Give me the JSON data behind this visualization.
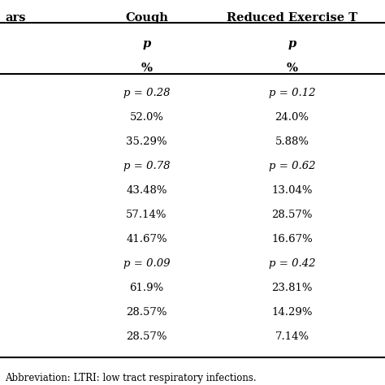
{
  "col1_header": "Cough",
  "col2_header": "Reduced Exercise T",
  "subheader_p": "p",
  "subheader_pct": "%",
  "rows": [
    {
      "col1": "p = 0.28",
      "col2": "p = 0.12",
      "italic": true
    },
    {
      "col1": "52.0%",
      "col2": "24.0%",
      "italic": false
    },
    {
      "col1": "35.29%",
      "col2": "5.88%",
      "italic": false
    },
    {
      "col1": "p = 0.78",
      "col2": "p = 0.62",
      "italic": true
    },
    {
      "col1": "43.48%",
      "col2": "13.04%",
      "italic": false
    },
    {
      "col1": "57.14%",
      "col2": "28.57%",
      "italic": false
    },
    {
      "col1": "41.67%",
      "col2": "16.67%",
      "italic": false
    },
    {
      "col1": "p = 0.09",
      "col2": "p = 0.42",
      "italic": true
    },
    {
      "col1": "61.9%",
      "col2": "23.81%",
      "italic": false
    },
    {
      "col1": "28.57%",
      "col2": "14.29%",
      "italic": false
    },
    {
      "col1": "28.57%",
      "col2": "7.14%",
      "italic": false
    }
  ],
  "footnote": "Abbreviation: LTRI: low tract respiratory infections.",
  "bg_color": "#ffffff",
  "text_color": "#000000",
  "line_color": "#000000",
  "font_size": 9.5,
  "header_font_size": 10.5,
  "footnote_font_size": 8.5
}
